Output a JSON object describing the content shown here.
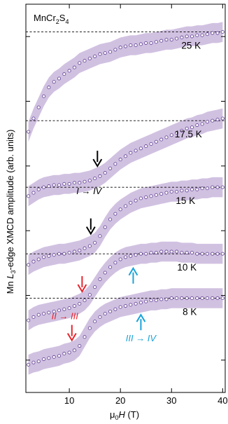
{
  "chart_data": {
    "type": "scatter",
    "title": "",
    "compound": {
      "base": "MnCr",
      "sub1": "2",
      "mid": "S",
      "sub2": "4"
    },
    "xlabel": {
      "pre": "μ",
      "sub0": "0",
      "italic": "H",
      "unit": " (T)"
    },
    "ylabel": {
      "pre": "Mn ",
      "italic": "L",
      "sub": "3",
      "post": "-edge XMCD amplitude (arb. units)"
    },
    "xlim": [
      1.5,
      40.5
    ],
    "x_ticks": [
      10,
      20,
      30,
      40
    ],
    "x_tick_labels": [
      "10",
      "20",
      "30",
      "40"
    ],
    "y_ticks_unlabeled": 6,
    "grid": false,
    "colors": {
      "markers": "#6b4c9a",
      "band": "#c9b6dc",
      "dashed": "#000000",
      "red": "#e8232c",
      "blue": "#1aa3d9",
      "black": "#000000"
    },
    "note": "",
    "series": [
      {
        "name": "25 K",
        "baseline": 2.2,
        "saturation": 3.0,
        "points": [
          [
            2,
            2.1
          ],
          [
            3,
            2.22
          ],
          [
            4,
            2.32
          ],
          [
            5,
            2.42
          ],
          [
            6,
            2.5
          ],
          [
            7,
            2.55
          ],
          [
            8,
            2.58
          ],
          [
            9,
            2.62
          ],
          [
            10,
            2.65
          ],
          [
            11,
            2.68
          ],
          [
            12,
            2.72
          ],
          [
            13,
            2.74
          ],
          [
            14,
            2.76
          ],
          [
            15,
            2.78
          ],
          [
            16,
            2.8
          ],
          [
            17,
            2.81
          ],
          [
            18,
            2.82
          ],
          [
            19,
            2.84
          ],
          [
            20,
            2.86
          ],
          [
            21,
            2.87
          ],
          [
            22,
            2.88
          ],
          [
            23,
            2.88
          ],
          [
            24,
            2.89
          ],
          [
            25,
            2.9
          ],
          [
            26,
            2.9
          ],
          [
            27,
            2.91
          ],
          [
            28,
            2.92
          ],
          [
            29,
            2.93
          ],
          [
            30,
            2.93
          ],
          [
            31,
            2.94
          ],
          [
            32,
            2.95
          ],
          [
            33,
            2.96
          ],
          [
            34,
            2.96
          ],
          [
            35,
            2.97
          ],
          [
            36,
            2.97
          ],
          [
            37,
            2.98
          ],
          [
            38,
            2.99
          ],
          [
            39,
            2.99
          ],
          [
            40,
            3.0
          ]
        ]
      },
      {
        "name": "17.5 K",
        "baseline": 1.6,
        "saturation": 2.2,
        "points": [
          [
            2,
            1.52
          ],
          [
            3,
            1.55
          ],
          [
            4,
            1.58
          ],
          [
            5,
            1.6
          ],
          [
            6,
            1.61
          ],
          [
            7,
            1.62
          ],
          [
            8,
            1.62
          ],
          [
            9,
            1.63
          ],
          [
            10,
            1.63
          ],
          [
            11,
            1.64
          ],
          [
            12,
            1.64
          ],
          [
            13,
            1.65
          ],
          [
            14,
            1.66
          ],
          [
            15,
            1.68
          ],
          [
            16,
            1.7
          ],
          [
            17,
            1.73
          ],
          [
            18,
            1.77
          ],
          [
            19,
            1.81
          ],
          [
            20,
            1.85
          ],
          [
            21,
            1.88
          ],
          [
            22,
            1.91
          ],
          [
            23,
            1.93
          ],
          [
            24,
            1.95
          ],
          [
            25,
            1.97
          ],
          [
            26,
            1.99
          ],
          [
            27,
            2.01
          ],
          [
            28,
            2.03
          ],
          [
            29,
            2.05
          ],
          [
            30,
            2.07
          ],
          [
            31,
            2.09
          ],
          [
            32,
            2.11
          ],
          [
            33,
            2.13
          ],
          [
            34,
            2.14
          ],
          [
            35,
            2.16
          ],
          [
            36,
            2.17
          ],
          [
            37,
            2.19
          ],
          [
            38,
            2.2
          ],
          [
            39,
            2.21
          ],
          [
            40,
            2.22
          ]
        ]
      },
      {
        "name": "15 K",
        "baseline": 1.0,
        "saturation": 1.6,
        "points": [
          [
            2,
            0.9
          ],
          [
            3,
            0.93
          ],
          [
            4,
            0.95
          ],
          [
            5,
            0.97
          ],
          [
            6,
            0.98
          ],
          [
            7,
            0.99
          ],
          [
            8,
            1.0
          ],
          [
            9,
            1.0
          ],
          [
            10,
            1.01
          ],
          [
            11,
            1.02
          ],
          [
            12,
            1.03
          ],
          [
            13,
            1.05
          ],
          [
            14,
            1.07
          ],
          [
            15,
            1.1
          ],
          [
            16,
            1.16
          ],
          [
            17,
            1.24
          ],
          [
            18,
            1.31
          ],
          [
            19,
            1.36
          ],
          [
            20,
            1.4
          ],
          [
            21,
            1.43
          ],
          [
            22,
            1.46
          ],
          [
            23,
            1.48
          ],
          [
            24,
            1.5
          ],
          [
            25,
            1.51
          ],
          [
            26,
            1.52
          ],
          [
            27,
            1.53
          ],
          [
            28,
            1.54
          ],
          [
            29,
            1.55
          ],
          [
            30,
            1.56
          ],
          [
            31,
            1.56
          ],
          [
            32,
            1.57
          ],
          [
            33,
            1.57
          ],
          [
            34,
            1.58
          ],
          [
            35,
            1.58
          ],
          [
            36,
            1.59
          ],
          [
            37,
            1.59
          ],
          [
            38,
            1.6
          ],
          [
            39,
            1.6
          ],
          [
            40,
            1.6
          ]
        ]
      },
      {
        "name": "10 K",
        "baseline": 0.6,
        "saturation": 1.0,
        "points": [
          [
            2,
            0.4
          ],
          [
            3,
            0.43
          ],
          [
            4,
            0.45
          ],
          [
            5,
            0.46
          ],
          [
            6,
            0.47
          ],
          [
            7,
            0.48
          ],
          [
            8,
            0.49
          ],
          [
            9,
            0.5
          ],
          [
            10,
            0.51
          ],
          [
            11,
            0.53
          ],
          [
            12,
            0.55
          ],
          [
            13,
            0.58
          ],
          [
            14,
            0.63
          ],
          [
            15,
            0.7
          ],
          [
            16,
            0.77
          ],
          [
            17,
            0.83
          ],
          [
            18,
            0.88
          ],
          [
            19,
            0.92
          ],
          [
            20,
            0.95
          ],
          [
            21,
            0.97
          ],
          [
            22,
            0.98
          ],
          [
            23,
            0.99
          ],
          [
            24,
            1.0
          ],
          [
            25,
            1.0
          ],
          [
            26,
            1.01
          ],
          [
            27,
            1.01
          ],
          [
            28,
            1.02
          ],
          [
            29,
            1.02
          ],
          [
            30,
            1.02
          ],
          [
            31,
            1.02
          ],
          [
            32,
            1.01
          ],
          [
            33,
            1.01
          ],
          [
            34,
            1.01
          ],
          [
            35,
            1.0
          ],
          [
            36,
            1.0
          ],
          [
            37,
            1.0
          ],
          [
            38,
            1.0
          ],
          [
            39,
            1.0
          ],
          [
            40,
            1.0
          ]
        ]
      },
      {
        "name": "8 K",
        "baseline": 0.0,
        "saturation": 0.6,
        "points": [
          [
            2,
            0.0
          ],
          [
            3,
            0.02
          ],
          [
            4,
            0.03
          ],
          [
            5,
            0.05
          ],
          [
            6,
            0.06
          ],
          [
            7,
            0.07
          ],
          [
            8,
            0.08
          ],
          [
            9,
            0.1
          ],
          [
            10,
            0.11
          ],
          [
            11,
            0.13
          ],
          [
            12,
            0.17
          ],
          [
            13,
            0.25
          ],
          [
            14,
            0.33
          ],
          [
            15,
            0.39
          ],
          [
            16,
            0.43
          ],
          [
            17,
            0.46
          ],
          [
            18,
            0.48
          ],
          [
            19,
            0.5
          ],
          [
            20,
            0.52
          ],
          [
            21,
            0.53
          ],
          [
            22,
            0.54
          ],
          [
            23,
            0.55
          ],
          [
            24,
            0.56
          ],
          [
            25,
            0.57
          ],
          [
            26,
            0.58
          ],
          [
            27,
            0.58
          ],
          [
            28,
            0.59
          ],
          [
            29,
            0.59
          ],
          [
            30,
            0.6
          ],
          [
            31,
            0.6
          ],
          [
            32,
            0.6
          ],
          [
            33,
            0.6
          ],
          [
            34,
            0.6
          ],
          [
            35,
            0.6
          ],
          [
            36,
            0.6
          ],
          [
            37,
            0.6
          ],
          [
            38,
            0.6
          ],
          [
            39,
            0.6
          ],
          [
            40,
            0.6
          ]
        ]
      }
    ],
    "dashed_levels": [
      3.0,
      2.2,
      1.6,
      1.0,
      0.6
    ],
    "annotations": [
      {
        "text": "I → IV",
        "color": "#000000",
        "arrow_x": 15.5,
        "series": "17.5 K"
      },
      {
        "text": "",
        "color": "#000000",
        "arrow_x": 14.2,
        "series": "15 K"
      },
      {
        "text": "",
        "color": "#e8232c",
        "arrow_x": 12.5,
        "series": "10 K",
        "dir": "down"
      },
      {
        "text": "",
        "color": "#1aa3d9",
        "arrow_x": 22.5,
        "series": "10 K",
        "dir": "up"
      },
      {
        "text": "II → III",
        "color": "#e8232c",
        "arrow_x": 10.5,
        "series": "8 K",
        "dir": "down"
      },
      {
        "text": "III → IV",
        "color": "#1aa3d9",
        "arrow_x": 24.0,
        "series": "8 K",
        "dir": "up"
      }
    ]
  }
}
